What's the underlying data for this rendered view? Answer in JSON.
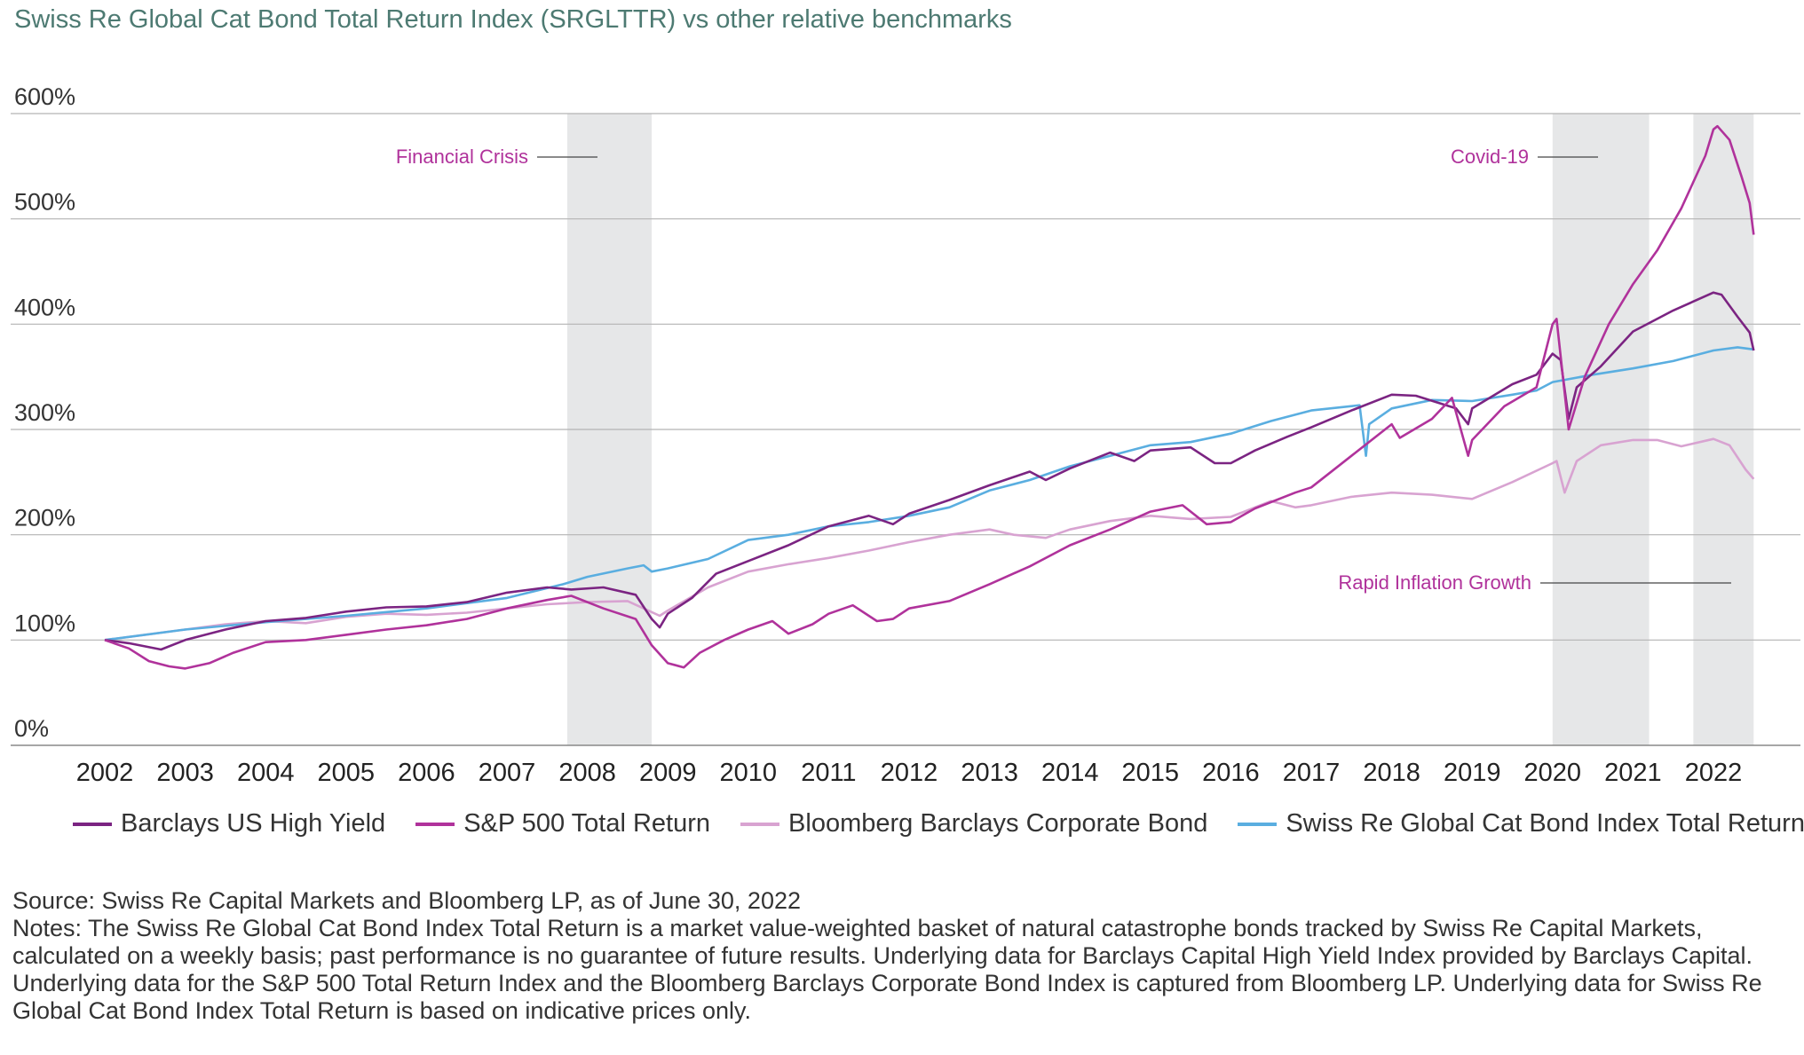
{
  "chart_data": {
    "type": "line",
    "title": "Swiss Re Global Cat Bond Total Return Index (SRGLTTR) vs other relative benchmarks",
    "xlabel": "",
    "ylabel": "",
    "ylim": [
      0,
      600
    ],
    "yticks": [
      "0%",
      "100%",
      "200%",
      "300%",
      "400%",
      "500%",
      "600%"
    ],
    "xticks": [
      "2002",
      "2003",
      "2004",
      "2005",
      "2006",
      "2007",
      "2008",
      "2009",
      "2010",
      "2011",
      "2012",
      "2013",
      "2014",
      "2015",
      "2016",
      "2017",
      "2018",
      "2019",
      "2020",
      "2021",
      "2022"
    ],
    "grid": "horizontal",
    "legend_position": "bottom",
    "shaded_periods": [
      {
        "label": "Financial Crisis",
        "start": 2007.75,
        "end": 2008.8
      },
      {
        "label": "Covid-19",
        "start": 2020.0,
        "end": 2021.2
      },
      {
        "label": "Rapid Inflation Growth",
        "start": 2021.75,
        "end": 2022.5
      }
    ],
    "series": [
      {
        "name": "Barclays US High Yield",
        "color": "#7b2482",
        "points": [
          [
            2002.0,
            100
          ],
          [
            2002.3,
            97
          ],
          [
            2002.7,
            91
          ],
          [
            2003.0,
            100
          ],
          [
            2003.5,
            110
          ],
          [
            2004.0,
            118
          ],
          [
            2004.5,
            121
          ],
          [
            2005.0,
            127
          ],
          [
            2005.5,
            131
          ],
          [
            2006.0,
            132
          ],
          [
            2006.5,
            136
          ],
          [
            2007.0,
            145
          ],
          [
            2007.5,
            150
          ],
          [
            2007.8,
            148
          ],
          [
            2008.2,
            150
          ],
          [
            2008.6,
            143
          ],
          [
            2008.8,
            120
          ],
          [
            2008.9,
            112
          ],
          [
            2009.0,
            125
          ],
          [
            2009.3,
            140
          ],
          [
            2009.6,
            163
          ],
          [
            2010.0,
            175
          ],
          [
            2010.5,
            190
          ],
          [
            2011.0,
            208
          ],
          [
            2011.5,
            218
          ],
          [
            2011.8,
            210
          ],
          [
            2012.0,
            220
          ],
          [
            2012.5,
            233
          ],
          [
            2013.0,
            247
          ],
          [
            2013.5,
            260
          ],
          [
            2013.7,
            252
          ],
          [
            2014.0,
            263
          ],
          [
            2014.5,
            278
          ],
          [
            2014.8,
            270
          ],
          [
            2015.0,
            280
          ],
          [
            2015.5,
            283
          ],
          [
            2015.8,
            268
          ],
          [
            2016.0,
            268
          ],
          [
            2016.3,
            280
          ],
          [
            2016.7,
            293
          ],
          [
            2017.0,
            302
          ],
          [
            2017.5,
            318
          ],
          [
            2018.0,
            333
          ],
          [
            2018.3,
            332
          ],
          [
            2018.8,
            320
          ],
          [
            2018.95,
            305
          ],
          [
            2019.0,
            320
          ],
          [
            2019.5,
            343
          ],
          [
            2019.8,
            352
          ],
          [
            2020.0,
            372
          ],
          [
            2020.1,
            366
          ],
          [
            2020.2,
            310
          ],
          [
            2020.3,
            340
          ],
          [
            2020.6,
            360
          ],
          [
            2021.0,
            393
          ],
          [
            2021.5,
            413
          ],
          [
            2022.0,
            430
          ],
          [
            2022.1,
            428
          ],
          [
            2022.3,
            407
          ],
          [
            2022.45,
            392
          ],
          [
            2022.5,
            375
          ]
        ]
      },
      {
        "name": "S&P 500 Total Return",
        "color": "#b0329b",
        "points": [
          [
            2002.0,
            100
          ],
          [
            2002.3,
            92
          ],
          [
            2002.55,
            80
          ],
          [
            2002.8,
            75
          ],
          [
            2003.0,
            73
          ],
          [
            2003.3,
            78
          ],
          [
            2003.6,
            88
          ],
          [
            2004.0,
            98
          ],
          [
            2004.5,
            100
          ],
          [
            2005.0,
            105
          ],
          [
            2005.5,
            110
          ],
          [
            2006.0,
            114
          ],
          [
            2006.5,
            120
          ],
          [
            2007.0,
            130
          ],
          [
            2007.5,
            138
          ],
          [
            2007.8,
            142
          ],
          [
            2008.2,
            130
          ],
          [
            2008.6,
            120
          ],
          [
            2008.8,
            95
          ],
          [
            2009.0,
            78
          ],
          [
            2009.2,
            74
          ],
          [
            2009.4,
            88
          ],
          [
            2009.7,
            100
          ],
          [
            2010.0,
            110
          ],
          [
            2010.3,
            118
          ],
          [
            2010.5,
            106
          ],
          [
            2010.8,
            115
          ],
          [
            2011.0,
            125
          ],
          [
            2011.3,
            133
          ],
          [
            2011.6,
            118
          ],
          [
            2011.8,
            120
          ],
          [
            2012.0,
            130
          ],
          [
            2012.5,
            137
          ],
          [
            2013.0,
            153
          ],
          [
            2013.5,
            170
          ],
          [
            2014.0,
            190
          ],
          [
            2014.5,
            205
          ],
          [
            2015.0,
            222
          ],
          [
            2015.4,
            228
          ],
          [
            2015.7,
            210
          ],
          [
            2016.0,
            212
          ],
          [
            2016.3,
            225
          ],
          [
            2016.8,
            240
          ],
          [
            2017.0,
            245
          ],
          [
            2017.5,
            275
          ],
          [
            2018.0,
            305
          ],
          [
            2018.1,
            292
          ],
          [
            2018.5,
            310
          ],
          [
            2018.75,
            330
          ],
          [
            2018.95,
            275
          ],
          [
            2019.0,
            290
          ],
          [
            2019.4,
            322
          ],
          [
            2019.8,
            340
          ],
          [
            2020.0,
            400
          ],
          [
            2020.05,
            405
          ],
          [
            2020.2,
            300
          ],
          [
            2020.4,
            350
          ],
          [
            2020.7,
            400
          ],
          [
            2021.0,
            438
          ],
          [
            2021.3,
            470
          ],
          [
            2021.6,
            510
          ],
          [
            2021.9,
            560
          ],
          [
            2022.0,
            585
          ],
          [
            2022.05,
            588
          ],
          [
            2022.2,
            575
          ],
          [
            2022.35,
            540
          ],
          [
            2022.45,
            515
          ],
          [
            2022.5,
            485
          ]
        ]
      },
      {
        "name": "Bloomberg Barclays Corporate Bond",
        "color": "#d8a3d1",
        "points": [
          [
            2002.0,
            100
          ],
          [
            2002.5,
            105
          ],
          [
            2003.0,
            110
          ],
          [
            2003.5,
            115
          ],
          [
            2004.0,
            118
          ],
          [
            2004.5,
            116
          ],
          [
            2005.0,
            122
          ],
          [
            2005.5,
            125
          ],
          [
            2006.0,
            124
          ],
          [
            2006.5,
            126
          ],
          [
            2007.0,
            130
          ],
          [
            2007.5,
            134
          ],
          [
            2008.0,
            136
          ],
          [
            2008.5,
            137
          ],
          [
            2008.7,
            130
          ],
          [
            2008.9,
            123
          ],
          [
            2009.0,
            128
          ],
          [
            2009.5,
            150
          ],
          [
            2010.0,
            165
          ],
          [
            2010.5,
            172
          ],
          [
            2011.0,
            178
          ],
          [
            2011.5,
            185
          ],
          [
            2012.0,
            193
          ],
          [
            2012.5,
            200
          ],
          [
            2013.0,
            205
          ],
          [
            2013.3,
            200
          ],
          [
            2013.7,
            197
          ],
          [
            2014.0,
            205
          ],
          [
            2014.5,
            213
          ],
          [
            2015.0,
            218
          ],
          [
            2015.5,
            215
          ],
          [
            2016.0,
            217
          ],
          [
            2016.5,
            232
          ],
          [
            2016.8,
            226
          ],
          [
            2017.0,
            228
          ],
          [
            2017.5,
            236
          ],
          [
            2018.0,
            240
          ],
          [
            2018.5,
            238
          ],
          [
            2019.0,
            234
          ],
          [
            2019.5,
            250
          ],
          [
            2020.0,
            268
          ],
          [
            2020.05,
            270
          ],
          [
            2020.15,
            240
          ],
          [
            2020.3,
            270
          ],
          [
            2020.6,
            285
          ],
          [
            2021.0,
            290
          ],
          [
            2021.3,
            290
          ],
          [
            2021.6,
            284
          ],
          [
            2022.0,
            291
          ],
          [
            2022.2,
            285
          ],
          [
            2022.4,
            262
          ],
          [
            2022.5,
            253
          ]
        ]
      },
      {
        "name": "Swiss Re Global Cat Bond Index Total Return",
        "color": "#5aaee0",
        "points": [
          [
            2002.0,
            100
          ],
          [
            2003.0,
            110
          ],
          [
            2004.0,
            117
          ],
          [
            2005.0,
            123
          ],
          [
            2006.0,
            130
          ],
          [
            2007.0,
            140
          ],
          [
            2007.7,
            153
          ],
          [
            2008.0,
            160
          ],
          [
            2008.5,
            168
          ],
          [
            2008.7,
            171
          ],
          [
            2008.8,
            165
          ],
          [
            2009.0,
            168
          ],
          [
            2009.5,
            177
          ],
          [
            2010.0,
            195
          ],
          [
            2010.5,
            200
          ],
          [
            2011.0,
            208
          ],
          [
            2011.5,
            212
          ],
          [
            2012.0,
            218
          ],
          [
            2012.5,
            226
          ],
          [
            2013.0,
            242
          ],
          [
            2013.5,
            252
          ],
          [
            2014.0,
            265
          ],
          [
            2014.5,
            275
          ],
          [
            2015.0,
            285
          ],
          [
            2015.5,
            288
          ],
          [
            2016.0,
            296
          ],
          [
            2016.5,
            308
          ],
          [
            2017.0,
            318
          ],
          [
            2017.6,
            323
          ],
          [
            2017.68,
            275
          ],
          [
            2017.72,
            305
          ],
          [
            2018.0,
            320
          ],
          [
            2018.5,
            328
          ],
          [
            2019.0,
            327
          ],
          [
            2019.5,
            333
          ],
          [
            2019.8,
            337
          ],
          [
            2020.0,
            345
          ],
          [
            2020.5,
            352
          ],
          [
            2021.0,
            358
          ],
          [
            2021.5,
            365
          ],
          [
            2022.0,
            375
          ],
          [
            2022.3,
            378
          ],
          [
            2022.5,
            376
          ]
        ]
      }
    ]
  },
  "legend": [
    {
      "label": "Barclays US High Yield",
      "color": "#7b2482"
    },
    {
      "label": "S&P 500 Total Return",
      "color": "#b0329b"
    },
    {
      "label": "Bloomberg Barclays Corporate Bond",
      "color": "#d8a3d1"
    },
    {
      "label": "Swiss Re Global Cat Bond Index Total Return",
      "color": "#5aaee0"
    }
  ],
  "footer": {
    "source": "Source: Swiss Re Capital Markets and Bloomberg LP, as of June 30, 2022",
    "notes": "Notes: The Swiss Re Global Cat Bond Index Total Return is a market value-weighted basket of natural catastrophe bonds tracked by Swiss Re Capital Markets, calculated on a weekly basis; past performance is no guarantee of future results. Underlying data for Barclays Capital High Yield Index provided by Barclays Capital. Underlying data for the S&P 500 Total Return Index and the Bloomberg Barclays Corporate Bond Index is captured from Bloomberg LP. Underlying data for Swiss Re Global Cat Bond Index Total Return is based on indicative prices only."
  },
  "colors": {
    "title": "#4d7a72",
    "shade": "#e6e7e8",
    "annotation": "#b0329b",
    "gridline": "#b3b3b3"
  }
}
